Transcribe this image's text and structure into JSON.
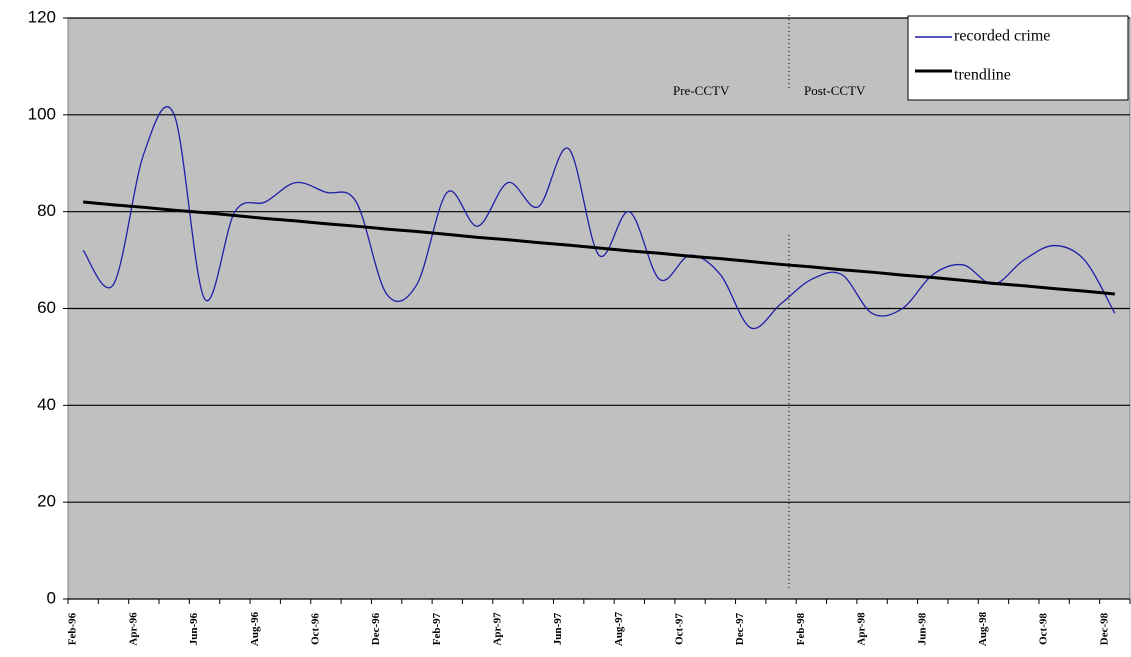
{
  "chart_data": {
    "type": "line",
    "categories": [
      "Feb-96",
      null,
      "Apr-96",
      null,
      "Jun-96",
      null,
      "Aug-96",
      null,
      "Oct-96",
      null,
      "Dec-96",
      null,
      "Feb-97",
      null,
      "Apr-97",
      null,
      "Jun-97",
      null,
      "Aug-97",
      null,
      "Oct-97",
      null,
      "Dec-97",
      null,
      "Feb-98",
      null,
      "Apr-98",
      null,
      "Jun-98",
      null,
      "Aug-98",
      null,
      "Oct-98",
      null,
      "Dec-98"
    ],
    "series": [
      {
        "name": "recorded crime",
        "color": "#1f1fa8",
        "values": [
          72,
          65,
          92,
          100,
          62,
          80,
          82,
          86,
          84,
          82,
          63,
          65,
          84,
          77,
          86,
          81,
          93,
          71,
          80,
          66,
          71,
          67,
          56,
          61,
          66,
          67,
          59,
          60,
          67,
          69,
          65,
          70,
          73,
          70,
          59
        ]
      },
      {
        "name": "trendline",
        "color": "#000000",
        "values": [
          82,
          81.4,
          80.9,
          80.3,
          79.8,
          79.2,
          78.6,
          78.1,
          77.5,
          77,
          76.4,
          75.9,
          75.3,
          74.7,
          74.2,
          73.6,
          73.1,
          72.5,
          71.9,
          71.4,
          70.8,
          70.3,
          69.7,
          69.1,
          68.6,
          68,
          67.5,
          66.9,
          66.4,
          65.8,
          65.2,
          64.7,
          64.1,
          63.6,
          63
        ]
      }
    ],
    "annotations": [
      "Pre-CCTV",
      "Post-CCTV"
    ],
    "ylim": [
      0,
      120
    ],
    "yticks": [
      0,
      20,
      40,
      60,
      80,
      100,
      120
    ],
    "grid": true,
    "legend": "top-right"
  }
}
